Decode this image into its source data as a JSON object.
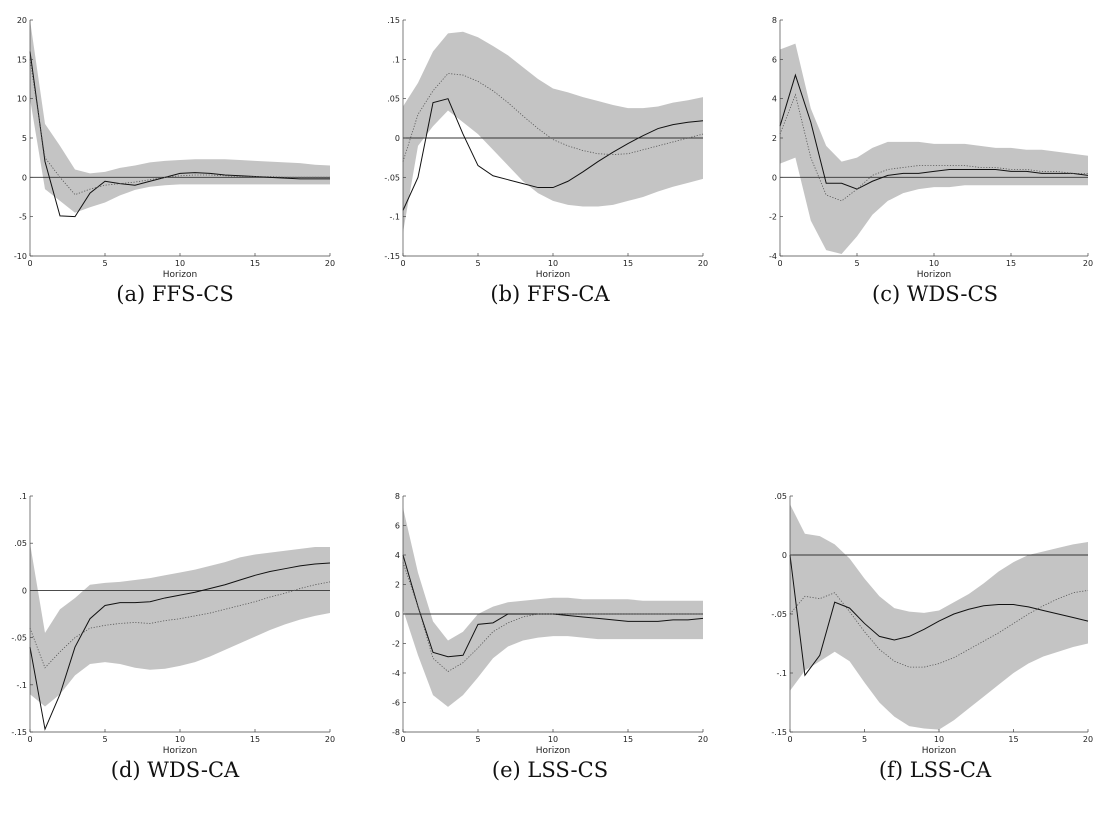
{
  "chart_data": [
    {
      "type": "line",
      "caption": "(a) FFS-CS",
      "xlabel": "Horizon",
      "xlim": [
        0,
        20
      ],
      "xticks": [
        0,
        5,
        10,
        15,
        20
      ],
      "ylim": [
        -10,
        20
      ],
      "yticks": [
        -10,
        -5,
        0,
        5,
        10,
        15,
        20
      ],
      "x": [
        0,
        1,
        2,
        3,
        4,
        5,
        6,
        7,
        8,
        9,
        10,
        11,
        12,
        13,
        14,
        15,
        16,
        17,
        18,
        19,
        20
      ],
      "series": [
        {
          "role": "solid",
          "values": [
            16,
            2,
            -4.9,
            -5,
            -2,
            -0.5,
            -0.8,
            -1.0,
            -0.5,
            0,
            0.5,
            0.6,
            0.5,
            0.3,
            0.2,
            0.1,
            0.0,
            -0.1,
            -0.2,
            -0.2,
            -0.2
          ]
        },
        {
          "role": "dotted",
          "values": [
            15,
            2.5,
            0,
            -2.2,
            -1.5,
            -1.0,
            -0.8,
            -0.6,
            -0.3,
            0,
            0.2,
            0.3,
            0.3,
            0.2,
            0.1,
            0.1,
            0.1,
            0.0,
            0.0,
            0.0,
            0.0
          ]
        }
      ],
      "band_upper": [
        20,
        6.8,
        4,
        1,
        0.5,
        0.7,
        1.2,
        1.5,
        1.9,
        2.1,
        2.2,
        2.3,
        2.3,
        2.3,
        2.2,
        2.1,
        2.0,
        1.9,
        1.8,
        1.6,
        1.5
      ],
      "band_lower": [
        10,
        -1.5,
        -3,
        -4.5,
        -3.8,
        -3.2,
        -2.3,
        -1.6,
        -1.2,
        -1.0,
        -0.9,
        -0.9,
        -0.9,
        -0.9,
        -0.9,
        -0.9,
        -0.9,
        -0.9,
        -0.9,
        -0.9,
        -0.9
      ]
    },
    {
      "type": "line",
      "caption": "(b) FFS-CA",
      "xlabel": "Horizon",
      "xlim": [
        0,
        20
      ],
      "xticks": [
        0,
        5,
        10,
        15,
        20
      ],
      "ylim": [
        -0.15,
        0.15
      ],
      "yticks": [
        -0.15,
        -0.1,
        -0.05,
        0,
        0.05,
        0.1,
        0.15
      ],
      "x": [
        0,
        1,
        2,
        3,
        4,
        5,
        6,
        7,
        8,
        9,
        10,
        11,
        12,
        13,
        14,
        15,
        16,
        17,
        18,
        19,
        20
      ],
      "series": [
        {
          "role": "solid",
          "values": [
            -0.092,
            -0.05,
            0.045,
            0.05,
            0.005,
            -0.035,
            -0.048,
            -0.053,
            -0.058,
            -0.063,
            -0.063,
            -0.055,
            -0.043,
            -0.03,
            -0.018,
            -0.007,
            0.003,
            0.012,
            0.017,
            0.02,
            0.022
          ]
        },
        {
          "role": "dotted",
          "values": [
            -0.03,
            0.03,
            0.06,
            0.082,
            0.08,
            0.072,
            0.06,
            0.045,
            0.028,
            0.012,
            -0.002,
            -0.01,
            -0.016,
            -0.02,
            -0.021,
            -0.02,
            -0.015,
            -0.01,
            -0.005,
            0.0,
            0.005
          ]
        }
      ],
      "band_upper": [
        0.04,
        0.07,
        0.11,
        0.133,
        0.135,
        0.128,
        0.117,
        0.105,
        0.09,
        0.075,
        0.063,
        0.058,
        0.052,
        0.047,
        0.042,
        0.038,
        0.038,
        0.04,
        0.045,
        0.048,
        0.052
      ],
      "band_lower": [
        -0.12,
        -0.01,
        0.015,
        0.035,
        0.02,
        0.005,
        -0.015,
        -0.035,
        -0.055,
        -0.07,
        -0.08,
        -0.085,
        -0.087,
        -0.087,
        -0.085,
        -0.08,
        -0.075,
        -0.068,
        -0.062,
        -0.057,
        -0.052
      ]
    },
    {
      "type": "line",
      "caption": "(c) WDS-CS",
      "xlabel": "Horizon",
      "xlim": [
        0,
        20
      ],
      "xticks": [
        0,
        5,
        10,
        15,
        20
      ],
      "ylim": [
        -4,
        8
      ],
      "yticks": [
        -4,
        -2,
        0,
        2,
        4,
        6,
        8
      ],
      "x": [
        0,
        1,
        2,
        3,
        4,
        5,
        6,
        7,
        8,
        9,
        10,
        11,
        12,
        13,
        14,
        15,
        16,
        17,
        18,
        19,
        20
      ],
      "series": [
        {
          "role": "solid",
          "values": [
            2.6,
            5.2,
            2.8,
            -0.3,
            -0.3,
            -0.6,
            -0.2,
            0.1,
            0.2,
            0.2,
            0.3,
            0.4,
            0.4,
            0.4,
            0.4,
            0.3,
            0.3,
            0.2,
            0.2,
            0.2,
            0.1
          ]
        },
        {
          "role": "dotted",
          "values": [
            2.2,
            4.2,
            1.0,
            -0.9,
            -1.2,
            -0.6,
            0.1,
            0.4,
            0.5,
            0.6,
            0.6,
            0.6,
            0.6,
            0.5,
            0.5,
            0.4,
            0.4,
            0.3,
            0.3,
            0.2,
            0.2
          ]
        }
      ],
      "band_upper": [
        6.5,
        6.8,
        3.5,
        1.6,
        0.8,
        1.0,
        1.5,
        1.8,
        1.8,
        1.8,
        1.7,
        1.7,
        1.7,
        1.6,
        1.5,
        1.5,
        1.4,
        1.4,
        1.3,
        1.2,
        1.1
      ],
      "band_lower": [
        0.7,
        1.0,
        -2.2,
        -3.7,
        -3.9,
        -3.0,
        -1.9,
        -1.2,
        -0.8,
        -0.6,
        -0.5,
        -0.5,
        -0.4,
        -0.4,
        -0.4,
        -0.4,
        -0.4,
        -0.4,
        -0.4,
        -0.4,
        -0.4
      ]
    },
    {
      "type": "line",
      "caption": "(d) WDS-CA",
      "xlabel": "Horizon",
      "xlim": [
        0,
        20
      ],
      "xticks": [
        0,
        5,
        10,
        15,
        20
      ],
      "ylim": [
        -0.15,
        0.1
      ],
      "yticks": [
        -0.15,
        -0.1,
        -0.05,
        0,
        0.05,
        0.1
      ],
      "x": [
        0,
        1,
        2,
        3,
        4,
        5,
        6,
        7,
        8,
        9,
        10,
        11,
        12,
        13,
        14,
        15,
        16,
        17,
        18,
        19,
        20
      ],
      "series": [
        {
          "role": "solid",
          "values": [
            -0.06,
            -0.147,
            -0.11,
            -0.06,
            -0.03,
            -0.016,
            -0.013,
            -0.013,
            -0.012,
            -0.008,
            -0.005,
            -0.002,
            0.002,
            0.006,
            0.011,
            0.016,
            0.02,
            0.023,
            0.026,
            0.028,
            0.029
          ]
        },
        {
          "role": "dotted",
          "values": [
            -0.04,
            -0.082,
            -0.065,
            -0.05,
            -0.04,
            -0.037,
            -0.035,
            -0.034,
            -0.035,
            -0.032,
            -0.03,
            -0.027,
            -0.024,
            -0.02,
            -0.016,
            -0.012,
            -0.007,
            -0.003,
            0.002,
            0.006,
            0.009
          ]
        }
      ],
      "band_upper": [
        0.05,
        -0.045,
        -0.02,
        -0.008,
        0.006,
        0.008,
        0.009,
        0.011,
        0.013,
        0.016,
        0.019,
        0.022,
        0.026,
        0.03,
        0.035,
        0.038,
        0.04,
        0.042,
        0.044,
        0.046,
        0.046
      ],
      "band_lower": [
        -0.11,
        -0.123,
        -0.11,
        -0.09,
        -0.078,
        -0.076,
        -0.078,
        -0.082,
        -0.084,
        -0.083,
        -0.08,
        -0.076,
        -0.07,
        -0.063,
        -0.056,
        -0.049,
        -0.042,
        -0.036,
        -0.031,
        -0.027,
        -0.024
      ]
    },
    {
      "type": "line",
      "caption": "(e) LSS-CS",
      "xlabel": "Horizon",
      "xlim": [
        0,
        20
      ],
      "xticks": [
        0,
        5,
        10,
        15,
        20
      ],
      "ylim": [
        -8,
        8
      ],
      "yticks": [
        -8,
        -6,
        -4,
        -2,
        0,
        2,
        4,
        6,
        8
      ],
      "x": [
        0,
        1,
        2,
        3,
        4,
        5,
        6,
        7,
        8,
        9,
        10,
        11,
        12,
        13,
        14,
        15,
        16,
        17,
        18,
        19,
        20
      ],
      "series": [
        {
          "role": "solid",
          "values": [
            4.0,
            0.5,
            -2.6,
            -2.9,
            -2.8,
            -0.7,
            -0.6,
            0.0,
            0.0,
            0.0,
            0.0,
            -0.1,
            -0.2,
            -0.3,
            -0.4,
            -0.5,
            -0.5,
            -0.5,
            -0.4,
            -0.4,
            -0.3
          ]
        },
        {
          "role": "dotted",
          "values": [
            3.5,
            0.5,
            -3.0,
            -3.9,
            -3.3,
            -2.3,
            -1.2,
            -0.6,
            -0.2,
            0.0,
            0.0,
            0.0,
            0.0,
            0.0,
            0.0,
            0.0,
            0.0,
            0.0,
            0.0,
            0.0,
            0.0
          ]
        }
      ],
      "band_upper": [
        7.2,
        2.8,
        -0.5,
        -1.8,
        -1.2,
        0.0,
        0.5,
        0.8,
        0.9,
        1.0,
        1.1,
        1.1,
        1.0,
        1.0,
        1.0,
        1.0,
        0.9,
        0.9,
        0.9,
        0.9,
        0.9
      ],
      "band_lower": [
        0.3,
        -2.8,
        -5.5,
        -6.3,
        -5.5,
        -4.3,
        -3.0,
        -2.2,
        -1.8,
        -1.6,
        -1.5,
        -1.5,
        -1.6,
        -1.7,
        -1.7,
        -1.7,
        -1.7,
        -1.7,
        -1.7,
        -1.7,
        -1.7
      ]
    },
    {
      "type": "line",
      "caption": "(f) LSS-CA",
      "xlabel": "Horizon",
      "xlim": [
        0,
        20
      ],
      "xticks": [
        0,
        5,
        10,
        15,
        20
      ],
      "ylim": [
        -0.15,
        0.05
      ],
      "yticks": [
        -0.15,
        -0.1,
        -0.05,
        0,
        0.05
      ],
      "x": [
        0,
        1,
        2,
        3,
        4,
        5,
        6,
        7,
        8,
        9,
        10,
        11,
        12,
        13,
        14,
        15,
        16,
        17,
        18,
        19,
        20
      ],
      "series": [
        {
          "role": "solid",
          "values": [
            0.0,
            -0.102,
            -0.085,
            -0.04,
            -0.045,
            -0.058,
            -0.069,
            -0.072,
            -0.069,
            -0.063,
            -0.056,
            -0.05,
            -0.046,
            -0.043,
            -0.042,
            -0.042,
            -0.044,
            -0.047,
            -0.05,
            -0.053,
            -0.056
          ]
        },
        {
          "role": "dotted",
          "values": [
            -0.05,
            -0.035,
            -0.037,
            -0.032,
            -0.048,
            -0.065,
            -0.08,
            -0.09,
            -0.095,
            -0.095,
            -0.092,
            -0.087,
            -0.08,
            -0.073,
            -0.066,
            -0.058,
            -0.05,
            -0.043,
            -0.037,
            -0.032,
            -0.03
          ]
        }
      ],
      "band_upper": [
        0.043,
        0.018,
        0.016,
        0.009,
        -0.003,
        -0.02,
        -0.035,
        -0.045,
        -0.048,
        -0.049,
        -0.047,
        -0.04,
        -0.033,
        -0.024,
        -0.014,
        -0.006,
        0.0,
        0.003,
        0.006,
        0.009,
        0.011
      ],
      "band_lower": [
        -0.115,
        -0.098,
        -0.09,
        -0.082,
        -0.09,
        -0.108,
        -0.125,
        -0.137,
        -0.145,
        -0.147,
        -0.148,
        -0.14,
        -0.13,
        -0.12,
        -0.11,
        -0.1,
        -0.092,
        -0.086,
        -0.082,
        -0.078,
        -0.075
      ]
    }
  ]
}
